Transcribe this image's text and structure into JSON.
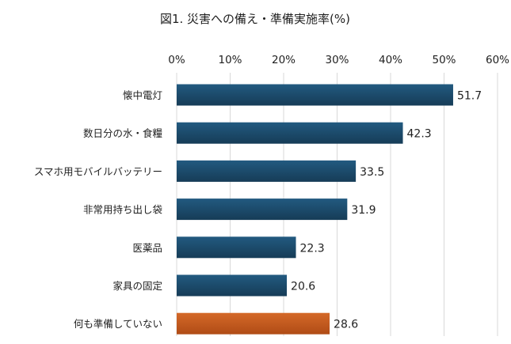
{
  "chart_data": {
    "type": "bar",
    "orientation": "horizontal",
    "title": "図1. 災害への備え・準備実施率(%)",
    "xlabel": "",
    "ylabel": "",
    "xlim": [
      0,
      60
    ],
    "x_ticks": [
      0,
      10,
      20,
      30,
      40,
      50,
      60
    ],
    "x_tick_labels": [
      "0%",
      "10%",
      "20%",
      "30%",
      "40%",
      "50%",
      "60%"
    ],
    "x_axis_position": "top",
    "grid": true,
    "legend": "none",
    "categories": [
      "懐中電灯",
      "数日分の水・食糧",
      "スマホ用モバイルバッテリー",
      "非常用持ち出し袋",
      "医薬品",
      "家具の固定",
      "何も準備していない"
    ],
    "values": [
      51.7,
      42.3,
      33.5,
      31.9,
      22.3,
      20.6,
      28.6
    ],
    "value_labels": [
      "51.7",
      "42.3",
      "33.5",
      "31.9",
      "22.3",
      "20.6",
      "28.6"
    ],
    "colors": {
      "default_bar": "#1a4766",
      "highlight_bar": "#c55a1e"
    },
    "highlight_index": 6
  }
}
